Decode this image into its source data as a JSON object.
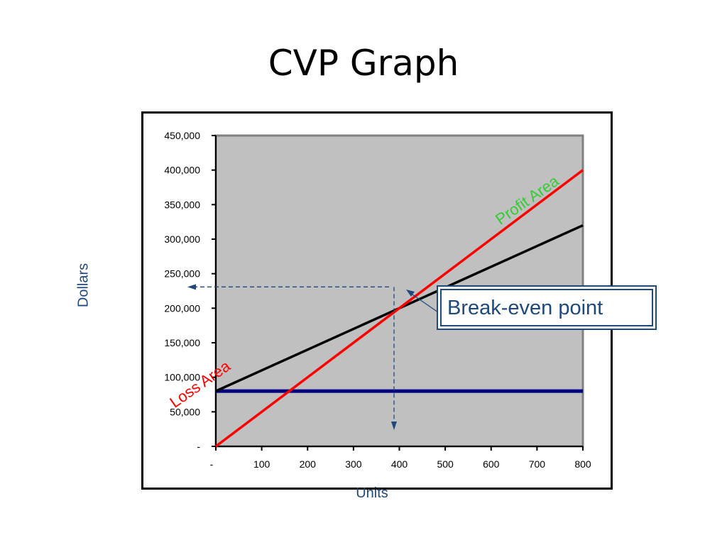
{
  "slide": {
    "title": "CVP Graph"
  },
  "callout": {
    "text": "Break-even point"
  },
  "colors": {
    "plot_bg": "#c0c0c0",
    "revenue": "#ff0000",
    "total_cost": "#000000",
    "fixed_cost": "#000080",
    "axis_title": "#1f497d",
    "profit_label": "#33cc33",
    "loss_label": "#ff0000"
  },
  "chart_data": {
    "type": "line",
    "title": "",
    "xlabel": "Units",
    "ylabel": "Dollars",
    "xlim": [
      0,
      800
    ],
    "ylim": [
      0,
      450000
    ],
    "x_ticks": [
      0,
      100,
      200,
      300,
      400,
      500,
      600,
      700,
      800
    ],
    "x_tick_labels": [
      "-",
      "100",
      "200",
      "300",
      "400",
      "500",
      "600",
      "700",
      "800"
    ],
    "y_ticks": [
      0,
      50000,
      100000,
      150000,
      200000,
      250000,
      300000,
      350000,
      400000,
      450000
    ],
    "y_tick_labels": [
      "-",
      "50,000",
      "100,000",
      "150,000",
      "200,000",
      "250,000",
      "300,000",
      "350,000",
      "400,000",
      "450,000"
    ],
    "grid": false,
    "series": [
      {
        "key": "revenue",
        "color": "#ff0000",
        "x": [
          0,
          800
        ],
        "values": [
          0,
          400000
        ]
      },
      {
        "key": "total_cost",
        "color": "#000000",
        "x": [
          0,
          800
        ],
        "values": [
          80000,
          320000
        ]
      },
      {
        "key": "fixed_cost",
        "color": "#000080",
        "x": [
          0,
          800
        ],
        "values": [
          80000,
          80000
        ]
      }
    ],
    "break_even": {
      "x": 400,
      "y": 200000
    },
    "annotations": [
      {
        "key": "profit",
        "text": "Profit Area",
        "color": "#33cc33",
        "x": 620,
        "y": 320000,
        "angle": -35
      },
      {
        "key": "loss",
        "text": "Loss Area",
        "color": "#ff0000",
        "x": -90,
        "y": 55000,
        "angle": -35
      }
    ]
  }
}
